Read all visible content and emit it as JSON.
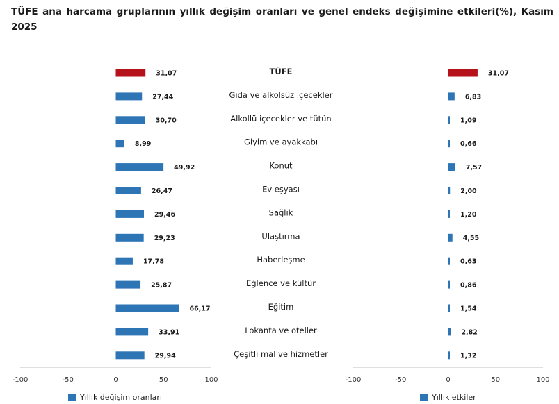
{
  "title": "TÜFE ana harcama gruplarının yıllık değişim oranları ve genel endeks değişimine etkileri(%), Kasım 2025",
  "colors": {
    "highlight": "#B5121B",
    "bar": "#2E75B6",
    "axis": "#BFBFBF"
  },
  "chart_data": [
    {
      "type": "bar",
      "orientation": "horizontal",
      "categories": [
        "TÜFE",
        "Gıda ve alkolsüz içecekler",
        "Alkollü içecekler ve tütün",
        "Giyim ve ayakkabı",
        "Konut",
        "Ev eşyası",
        "Sağlık",
        "Ulaştırma",
        "Haberleşme",
        "Eğlence ve kültür",
        "Eğitim",
        "Lokanta ve oteller",
        "Çeşitli mal ve hizmetler"
      ],
      "series": [
        {
          "name": "Yıllık değişim oranları",
          "values": [
            31.07,
            27.44,
            30.7,
            8.99,
            49.92,
            26.47,
            29.46,
            29.23,
            17.78,
            25.87,
            66.17,
            33.91,
            29.94
          ]
        }
      ],
      "value_labels": [
        "31,07",
        "27,44",
        "30,70",
        "8,99",
        "49,92",
        "26,47",
        "29,46",
        "29,23",
        "17,78",
        "25,87",
        "66,17",
        "33,91",
        "29,94"
      ],
      "xlim": [
        -100,
        100
      ],
      "xticks": [
        -100,
        -50,
        0,
        50,
        100
      ],
      "xtick_labels": [
        "-100",
        "-50",
        "0",
        "50",
        "100"
      ],
      "legend_position": "bottom-left",
      "highlight_index": 0
    },
    {
      "type": "bar",
      "orientation": "horizontal",
      "categories": [
        "TÜFE",
        "Gıda ve alkolsüz içecekler",
        "Alkollü içecekler ve tütün",
        "Giyim ve ayakkabı",
        "Konut",
        "Ev eşyası",
        "Sağlık",
        "Ulaştırma",
        "Haberleşme",
        "Eğlence ve kültür",
        "Eğitim",
        "Lokanta ve oteller",
        "Çeşitli mal ve hizmetler"
      ],
      "series": [
        {
          "name": "Yıllık etkiler",
          "values": [
            31.07,
            6.83,
            1.09,
            0.66,
            7.57,
            2.0,
            1.2,
            4.55,
            0.63,
            0.86,
            1.54,
            2.82,
            1.32
          ]
        }
      ],
      "value_labels": [
        "31,07",
        "6,83",
        "1,09",
        "0,66",
        "7,57",
        "2,00",
        "1,20",
        "4,55",
        "0,63",
        "0,86",
        "1,54",
        "2,82",
        "1,32"
      ],
      "xlim": [
        -100,
        100
      ],
      "xticks": [
        -100,
        -50,
        0,
        50,
        100
      ],
      "xtick_labels": [
        "-100",
        "-50",
        "0",
        "50",
        "100"
      ],
      "legend_position": "bottom-center",
      "highlight_index": 0
    }
  ]
}
